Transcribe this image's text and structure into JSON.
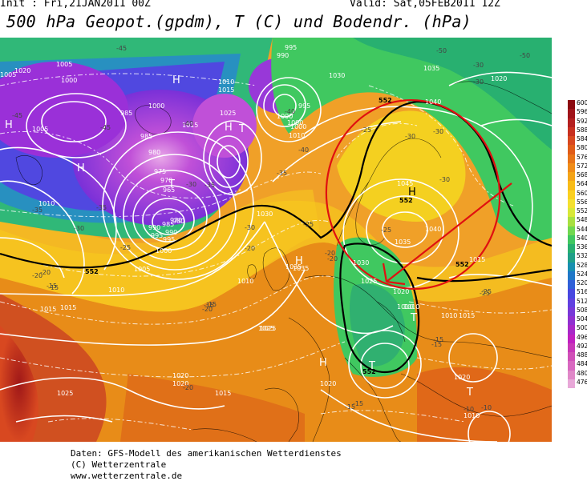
{
  "header": {
    "init": "Init : Fri,21JAN2011 00Z",
    "valid": "Valid: Sat,05FEB2011 12Z",
    "title": "500 hPa Geopot.(gpdm), T (C) und Bodendr. (hPa)"
  },
  "legend": {
    "labels": [
      "600",
      "596",
      "592",
      "588",
      "584",
      "580",
      "576",
      "572",
      "568",
      "564",
      "560",
      "556",
      "552",
      "548",
      "544",
      "540",
      "536",
      "532",
      "528",
      "524",
      "520",
      "516",
      "512",
      "508",
      "504",
      "500",
      "496",
      "492",
      "488",
      "484",
      "480",
      "476"
    ],
    "colors": [
      "#8c0a10",
      "#a0141a",
      "#b42020",
      "#c83020",
      "#d84820",
      "#e05c18",
      "#e87418",
      "#f08c18",
      "#f4a418",
      "#f8bc18",
      "#fad020",
      "#f4e030",
      "#d8e838",
      "#a8e040",
      "#70d850",
      "#40c860",
      "#28b070",
      "#20a088",
      "#1890b0",
      "#2078c8",
      "#3060d8",
      "#4848e0",
      "#6040e0",
      "#7838d8",
      "#9030d0",
      "#a828c8",
      "#c020c0",
      "#c838b8",
      "#d050b8",
      "#d868c0",
      "#e088c8",
      "#e8a8d8"
    ]
  },
  "map": {
    "pressure_labels": [
      "1020",
      "1005",
      "1000",
      "985",
      "990",
      "995",
      "1010",
      "1015",
      "1025",
      "1015",
      "1000",
      "1010",
      "1000",
      "1005",
      "1010",
      "1000",
      "985",
      "980",
      "975",
      "970",
      "965",
      "970",
      "980",
      "985",
      "990",
      "995",
      "1000",
      "1005",
      "1010",
      "1015",
      "1020",
      "1030",
      "1035",
      "1035",
      "1040",
      "1045",
      "1040",
      "1035",
      "1030",
      "1025",
      "1020",
      "1010",
      "1010",
      "1015",
      "1020",
      "1025",
      "1015",
      "1010",
      "1025",
      "1020",
      "1020",
      "1015",
      "1010",
      "1020",
      "1025",
      "1030",
      "1035",
      "1005",
      "995",
      "990",
      "995",
      "1000",
      "1010",
      "1015"
    ],
    "temp_labels": [
      "-45",
      "-45",
      "-40",
      "-40",
      "-35",
      "-35",
      "-35",
      "-30",
      "-30",
      "-30",
      "-25",
      "-25",
      "-25",
      "-25",
      "-20",
      "-20",
      "-20",
      "-20",
      "-15",
      "-15",
      "-15",
      "-15",
      "-10",
      "-40",
      "-45",
      "-35",
      "-30",
      "-50",
      "-50",
      "-30",
      "-30",
      "-25",
      "-20",
      "-15",
      "-30",
      "-30",
      "-25",
      "-20",
      "-15",
      "-15",
      "-10",
      "-20",
      "-15"
    ],
    "geo_labels": [
      "552",
      "552",
      "552",
      "552",
      "552"
    ],
    "systems": [
      "H",
      "H",
      "H",
      "H",
      "H",
      "H",
      "H",
      "T",
      "T",
      "T",
      "T",
      "T"
    ]
  },
  "credits": {
    "line1": "Daten: GFS-Modell des amerikanischen Wetterdienstes",
    "line2": "(C) Wetterzentrale",
    "line3": "www.wetterzentrale.de"
  }
}
